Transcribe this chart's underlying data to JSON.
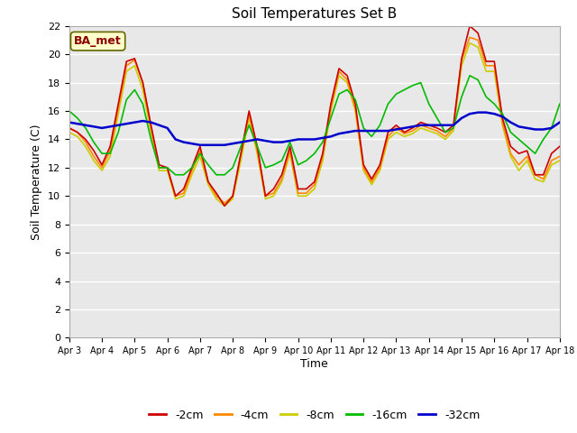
{
  "title": "Soil Temperatures Set B",
  "xlabel": "Time",
  "ylabel": "Soil Temperature (C)",
  "annotation": "BA_met",
  "ylim": [
    0,
    22
  ],
  "yticks": [
    0,
    2,
    4,
    6,
    8,
    10,
    12,
    14,
    16,
    18,
    20,
    22
  ],
  "xtick_labels": [
    "Apr 3",
    "Apr 4",
    "Apr 5",
    "Apr 6",
    "Apr 7",
    "Apr 8",
    "Apr 9",
    "Apr 10",
    "Apr 11",
    "Apr 12",
    "Apr 13",
    "Apr 14",
    "Apr 15",
    "Apr 16",
    "Apr 17",
    "Apr 18"
  ],
  "series": {
    "-2cm": {
      "color": "#cc0000",
      "lw": 1.2
    },
    "-4cm": {
      "color": "#ff8800",
      "lw": 1.2
    },
    "-8cm": {
      "color": "#cccc00",
      "lw": 1.2
    },
    "-16cm": {
      "color": "#00bb00",
      "lw": 1.2
    },
    "-32cm": {
      "color": "#0000cc",
      "lw": 1.8
    }
  },
  "t": [
    0,
    0.25,
    0.5,
    0.75,
    1.0,
    1.25,
    1.5,
    1.75,
    2.0,
    2.25,
    2.5,
    2.75,
    3.0,
    3.25,
    3.5,
    3.75,
    4.0,
    4.25,
    4.5,
    4.75,
    5.0,
    5.25,
    5.5,
    5.75,
    6.0,
    6.25,
    6.5,
    6.75,
    7.0,
    7.25,
    7.5,
    7.75,
    8.0,
    8.25,
    8.5,
    8.75,
    9.0,
    9.25,
    9.5,
    9.75,
    10.0,
    10.25,
    10.5,
    10.75,
    11.0,
    11.25,
    11.5,
    11.75,
    12.0,
    12.25,
    12.5,
    12.75,
    13.0,
    13.25,
    13.5,
    13.75,
    14.0,
    14.25,
    14.5,
    14.75,
    15.0
  ],
  "d2cm": [
    14.8,
    14.5,
    14.0,
    13.2,
    12.2,
    13.5,
    16.5,
    19.5,
    19.7,
    18.0,
    15.0,
    12.2,
    12.0,
    10.0,
    10.5,
    12.0,
    13.5,
    11.0,
    10.2,
    9.3,
    10.0,
    13.0,
    16.0,
    13.5,
    10.0,
    10.5,
    11.5,
    13.5,
    10.5,
    10.5,
    11.0,
    13.0,
    16.5,
    19.0,
    18.5,
    16.5,
    12.2,
    11.2,
    12.2,
    14.5,
    15.0,
    14.5,
    14.8,
    15.2,
    15.0,
    14.8,
    14.5,
    15.0,
    19.7,
    22.0,
    21.5,
    19.5,
    19.5,
    15.5,
    13.5,
    13.0,
    13.2,
    11.5,
    11.5,
    13.0,
    13.5
  ],
  "d4cm": [
    14.8,
    14.5,
    13.8,
    12.8,
    12.0,
    13.2,
    16.2,
    19.2,
    19.6,
    18.0,
    14.8,
    12.0,
    12.0,
    10.0,
    10.2,
    11.8,
    13.2,
    11.0,
    10.0,
    9.5,
    10.0,
    13.0,
    15.8,
    13.2,
    10.0,
    10.2,
    11.2,
    13.2,
    10.2,
    10.2,
    10.8,
    12.8,
    16.2,
    18.8,
    18.2,
    16.2,
    12.0,
    11.0,
    12.0,
    14.2,
    14.8,
    14.4,
    14.6,
    15.0,
    14.8,
    14.6,
    14.2,
    14.8,
    19.6,
    21.2,
    21.0,
    19.2,
    19.2,
    15.2,
    13.0,
    12.2,
    12.8,
    11.5,
    11.2,
    12.5,
    12.8
  ],
  "d8cm": [
    14.5,
    14.2,
    13.5,
    12.5,
    11.8,
    12.8,
    15.8,
    18.8,
    19.2,
    17.5,
    14.5,
    11.8,
    11.8,
    9.8,
    10.0,
    11.5,
    12.8,
    10.8,
    9.8,
    9.3,
    9.8,
    12.5,
    15.5,
    13.0,
    9.8,
    10.0,
    11.0,
    13.0,
    10.0,
    10.0,
    10.5,
    12.5,
    16.0,
    18.5,
    18.0,
    16.0,
    11.8,
    10.8,
    11.8,
    14.0,
    14.5,
    14.2,
    14.4,
    14.8,
    14.6,
    14.4,
    14.0,
    14.6,
    19.2,
    20.8,
    20.5,
    18.8,
    18.8,
    15.0,
    12.8,
    11.8,
    12.5,
    11.2,
    11.0,
    12.2,
    12.5
  ],
  "d16cm": [
    16.0,
    15.5,
    14.8,
    13.8,
    13.0,
    13.0,
    14.5,
    16.8,
    17.5,
    16.5,
    14.0,
    12.0,
    12.0,
    11.5,
    11.5,
    12.0,
    13.0,
    12.2,
    11.5,
    11.5,
    12.0,
    13.5,
    15.0,
    13.5,
    12.0,
    12.2,
    12.5,
    13.8,
    12.2,
    12.5,
    13.0,
    13.8,
    15.5,
    17.2,
    17.5,
    16.8,
    14.8,
    14.2,
    15.0,
    16.5,
    17.2,
    17.5,
    17.8,
    18.0,
    16.5,
    15.5,
    14.5,
    14.8,
    17.0,
    18.5,
    18.2,
    17.0,
    16.5,
    15.8,
    14.5,
    14.0,
    13.5,
    13.0,
    14.0,
    14.8,
    16.5
  ],
  "d32cm": [
    15.2,
    15.1,
    15.0,
    14.9,
    14.8,
    14.9,
    15.0,
    15.1,
    15.2,
    15.3,
    15.2,
    15.0,
    14.8,
    14.0,
    13.8,
    13.7,
    13.6,
    13.6,
    13.6,
    13.6,
    13.7,
    13.8,
    13.9,
    14.0,
    13.9,
    13.8,
    13.8,
    13.9,
    14.0,
    14.0,
    14.0,
    14.1,
    14.2,
    14.4,
    14.5,
    14.6,
    14.6,
    14.6,
    14.6,
    14.6,
    14.7,
    14.8,
    14.9,
    15.0,
    15.0,
    15.0,
    15.0,
    15.0,
    15.5,
    15.8,
    15.9,
    15.9,
    15.8,
    15.6,
    15.2,
    14.9,
    14.8,
    14.7,
    14.7,
    14.8,
    15.2
  ]
}
